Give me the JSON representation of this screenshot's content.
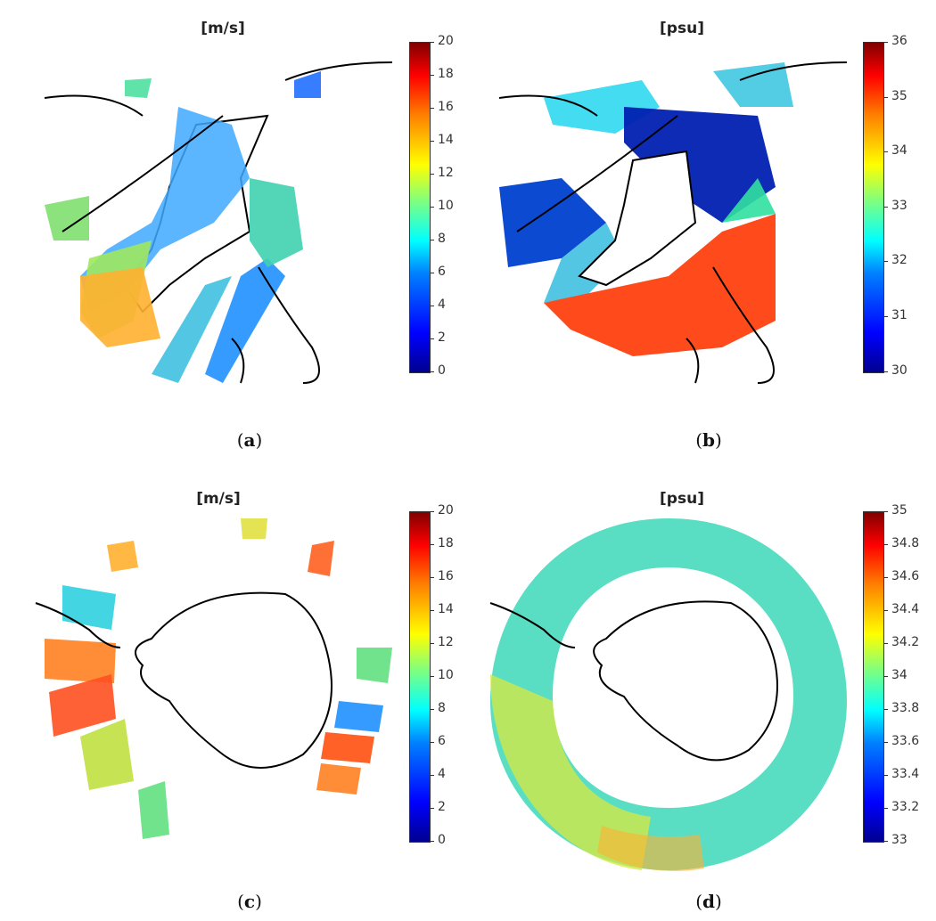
{
  "panels": [
    {
      "id": "a",
      "title": "[m/s]",
      "caption_label": "a",
      "colorbar": {
        "min": 0,
        "max": 20,
        "ticks": [
          "20",
          "18",
          "16",
          "14",
          "12",
          "10",
          "8",
          "6",
          "4",
          "2",
          "0"
        ]
      }
    },
    {
      "id": "b",
      "title": "[psu]",
      "caption_label": "b",
      "colorbar": {
        "min": 30,
        "max": 36,
        "ticks": [
          "36",
          "35",
          "34",
          "33",
          "32",
          "31",
          "30"
        ]
      }
    },
    {
      "id": "c",
      "title": "[m/s]",
      "caption_label": "c",
      "colorbar": {
        "min": 0,
        "max": 20,
        "ticks": [
          "20",
          "18",
          "16",
          "14",
          "12",
          "10",
          "8",
          "6",
          "4",
          "2",
          "0"
        ]
      }
    },
    {
      "id": "d",
      "title": "[psu]",
      "caption_label": "d",
      "colorbar": {
        "min": 33,
        "max": 35,
        "ticks": [
          "35",
          "34.8",
          "34.6",
          "34.4",
          "34.2",
          "34",
          "33.8",
          "33.6",
          "33.4",
          "33.2",
          "33"
        ]
      }
    }
  ],
  "colormap": "jet",
  "colors": {
    "coastline": "#000000",
    "background": "#ffffff"
  }
}
